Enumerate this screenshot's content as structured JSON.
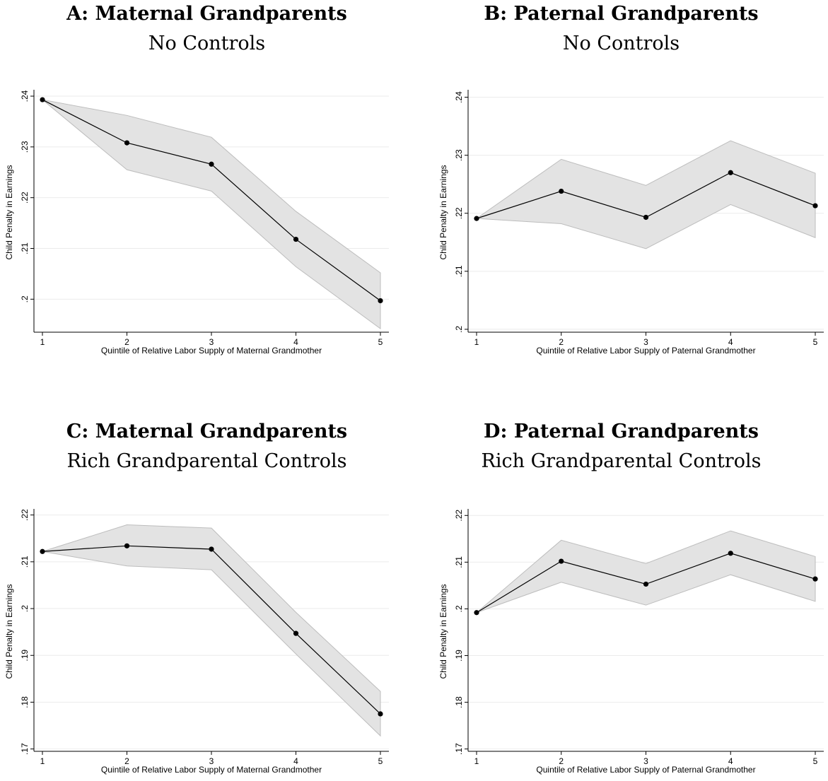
{
  "chart_data": [
    {
      "type": "line",
      "title": "A: Maternal Grandparents",
      "subtitle": "No Controls",
      "xlabel": "Quintile of Relative Labor Supply of Maternal Grandmother",
      "ylabel": "Child Penalty in Earnings",
      "x": [
        1,
        2,
        3,
        4,
        5
      ],
      "xticks": [
        "1",
        "2",
        "3",
        "4",
        "5"
      ],
      "yticks": [
        ".2",
        ".21",
        ".22",
        ".23",
        ".24"
      ],
      "ytick_values": [
        0.2,
        0.21,
        0.22,
        0.23,
        0.24
      ],
      "ylim": [
        0.1935,
        0.2407
      ],
      "grid": true,
      "series": [
        {
          "values": [
            0.2393,
            0.2308,
            0.2266,
            0.2118,
            0.1997
          ],
          "ci_upper": [
            0.2393,
            0.2362,
            0.2319,
            0.2173,
            0.2052
          ],
          "ci_lower": [
            0.2393,
            0.2255,
            0.2213,
            0.2064,
            0.1942
          ]
        }
      ]
    },
    {
      "type": "line",
      "title": "B: Paternal Grandparents",
      "subtitle": "No Controls",
      "xlabel": "Quintile of Relative Labor Supply of Paternal Grandmother",
      "ylabel": "Child Penalty in Earnings",
      "x": [
        1,
        2,
        3,
        4,
        5
      ],
      "xticks": [
        "1",
        "2",
        "3",
        "4",
        "5"
      ],
      "yticks": [
        ".2",
        ".21",
        ".22",
        ".23",
        ".24"
      ],
      "ytick_values": [
        0.2,
        0.21,
        0.22,
        0.23,
        0.24
      ],
      "ylim": [
        0.1995,
        0.2408
      ],
      "grid": true,
      "series": [
        {
          "values": [
            0.2191,
            0.2238,
            0.2193,
            0.227,
            0.2213
          ],
          "ci_upper": [
            0.2191,
            0.2293,
            0.2248,
            0.2325,
            0.2269
          ],
          "ci_lower": [
            0.2191,
            0.2182,
            0.2139,
            0.2215,
            0.2158
          ]
        }
      ]
    },
    {
      "type": "line",
      "title": "C: Maternal Grandparents",
      "subtitle": "Rich Grandparental Controls",
      "xlabel": "Quintile of Relative Labor Supply of Maternal Grandmother",
      "ylabel": "Child Penalty in Earnings",
      "x": [
        1,
        2,
        3,
        4,
        5
      ],
      "xticks": [
        "1",
        "2",
        "3",
        "4",
        "5"
      ],
      "yticks": [
        ".17",
        ".18",
        ".19",
        ".2",
        ".21",
        ".22"
      ],
      "ytick_values": [
        0.17,
        0.18,
        0.19,
        0.2,
        0.21,
        0.22
      ],
      "ylim": [
        0.1695,
        0.2207
      ],
      "grid": true,
      "series": [
        {
          "values": [
            0.2122,
            0.2134,
            0.2127,
            0.1947,
            0.1775
          ],
          "ci_upper": [
            0.2122,
            0.2179,
            0.2172,
            0.1992,
            0.1823
          ],
          "ci_lower": [
            0.2122,
            0.2091,
            0.2083,
            0.1903,
            0.1728
          ]
        }
      ]
    },
    {
      "type": "line",
      "title": "D: Paternal Grandparents",
      "subtitle": "Rich Grandparental Controls",
      "xlabel": "Quintile of Relative Labor Supply of Paternal Grandmother",
      "ylabel": "Child Penalty in Earnings",
      "x": [
        1,
        2,
        3,
        4,
        5
      ],
      "xticks": [
        "1",
        "2",
        "3",
        "4",
        "5"
      ],
      "yticks": [
        ".17",
        ".18",
        ".19",
        ".2",
        ".21",
        ".22"
      ],
      "ytick_values": [
        0.17,
        0.18,
        0.19,
        0.2,
        0.21,
        0.22
      ],
      "ylim": [
        0.1695,
        0.2208
      ],
      "grid": true,
      "series": [
        {
          "values": [
            0.1992,
            0.2102,
            0.2053,
            0.2119,
            0.2064
          ],
          "ci_upper": [
            0.1992,
            0.2147,
            0.2097,
            0.2167,
            0.2112
          ],
          "ci_lower": [
            0.1992,
            0.2057,
            0.2008,
            0.2073,
            0.2016
          ]
        }
      ]
    }
  ],
  "colors": {
    "line": "#000000",
    "ci_fill": "#e3e3e3",
    "ci_stroke": "#bdbdbd",
    "grid": "#ebebeb"
  }
}
